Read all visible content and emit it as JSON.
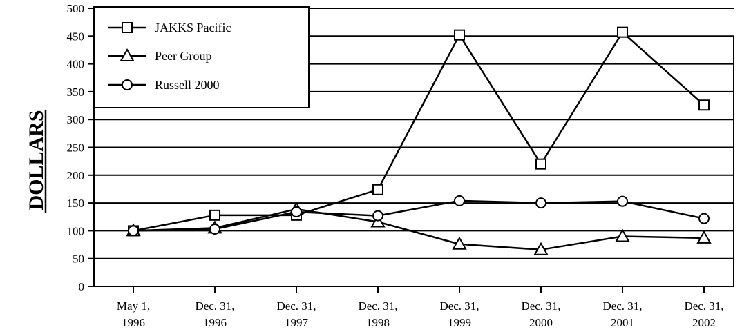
{
  "chart_data": {
    "type": "line",
    "title": "",
    "xlabel": "",
    "ylabel": "DOLLARS",
    "ylim": [
      0,
      500
    ],
    "yticks": [
      0,
      50,
      100,
      150,
      200,
      250,
      300,
      350,
      400,
      450,
      500
    ],
    "grid": "horizontal",
    "legend_position": "top-left",
    "categories": [
      [
        "May 1,",
        "1996"
      ],
      [
        "Dec. 31,",
        "1996"
      ],
      [
        "Dec. 31,",
        "1997"
      ],
      [
        "Dec. 31,",
        "1998"
      ],
      [
        "Dec. 31,",
        "1999"
      ],
      [
        "Dec. 31,",
        "2000"
      ],
      [
        "Dec. 31,",
        "2001"
      ],
      [
        "Dec. 31,",
        "2002"
      ]
    ],
    "series": [
      {
        "name": "JAKKS Pacific",
        "marker": "square",
        "values": [
          100,
          128,
          128,
          174,
          452,
          220,
          457,
          326
        ]
      },
      {
        "name": "Peer Group",
        "marker": "triangle",
        "values": [
          100,
          105,
          139,
          116,
          76,
          66,
          90,
          87
        ]
      },
      {
        "name": "Russell 2000",
        "marker": "circle",
        "values": [
          100,
          103,
          134,
          127,
          154,
          150,
          153,
          122
        ]
      }
    ]
  }
}
